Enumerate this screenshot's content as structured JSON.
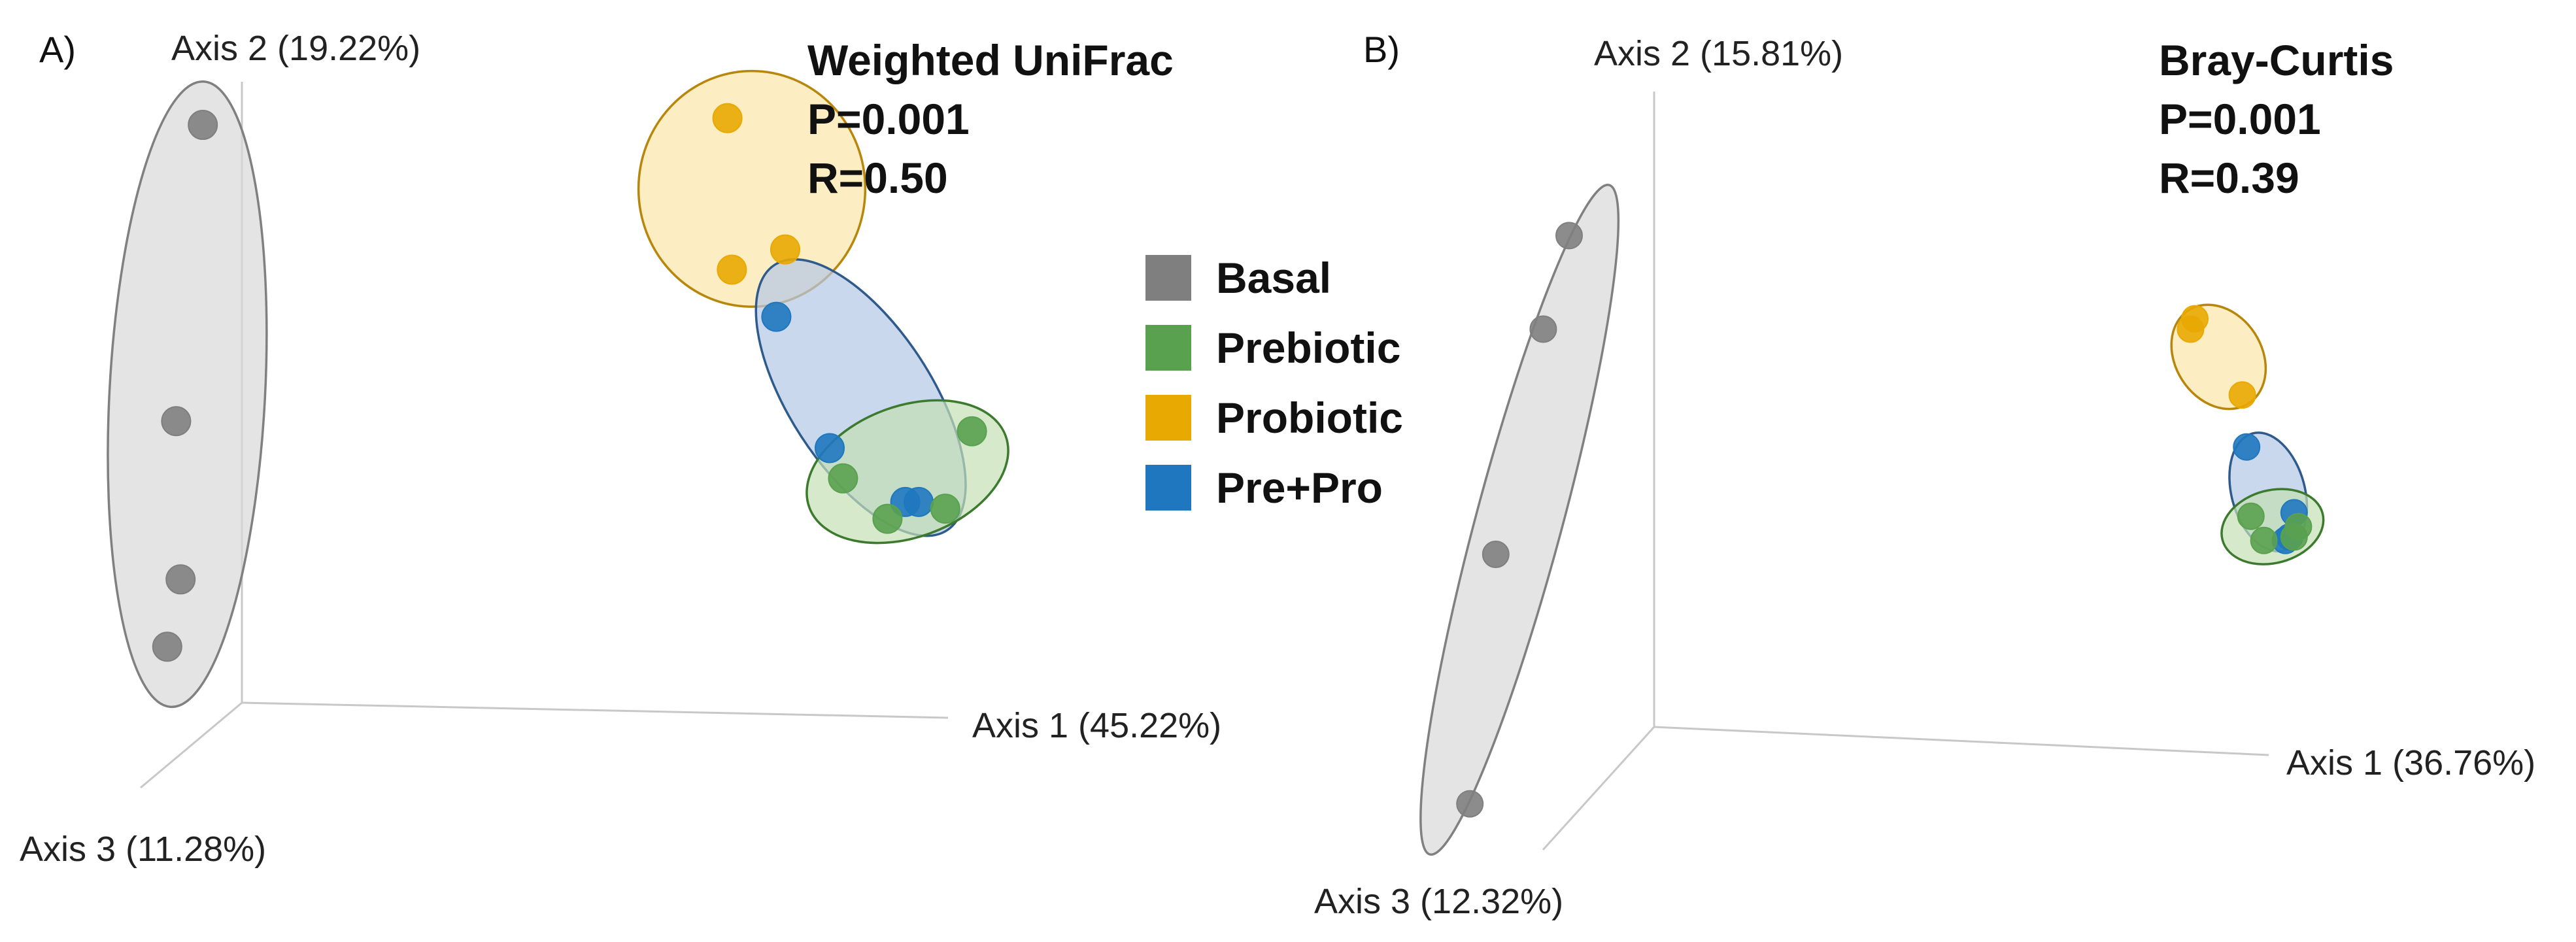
{
  "legend": {
    "items": [
      {
        "label": "Basal",
        "color": "#7f7f7f"
      },
      {
        "label": "Prebiotic",
        "color": "#5aa14f"
      },
      {
        "label": "Probiotic",
        "color": "#e9a903"
      },
      {
        "label": "Pre+Pro",
        "color": "#1f78bf"
      }
    ]
  },
  "chart_data": [
    {
      "type": "scatter",
      "panel": "A)",
      "title": "Weighted UniFrac",
      "stats": {
        "p": "P=0.001",
        "r": "R=0.50"
      },
      "axes": {
        "x": "Axis 1 (45.22%)",
        "y": "Axis 2 (19.22%)",
        "z": "Axis 3 (11.28%)"
      },
      "range": {
        "x": [
          -1,
          1
        ],
        "y": [
          -1,
          1
        ]
      },
      "series": [
        {
          "name": "Basal",
          "color": "#7f7f7f",
          "points": [
            [
              -0.86,
              0.93
            ],
            [
              -0.92,
              0.05
            ],
            [
              -0.91,
              -0.42
            ],
            [
              -0.94,
              -0.62
            ]
          ],
          "ellipse": {
            "cx": -0.895,
            "cy": 0.13,
            "rx": 0.175,
            "ry": 0.93,
            "rot": 3,
            "fill": "#d9d9d9",
            "stroke": "#808080"
          }
        },
        {
          "name": "Probiotic",
          "color": "#e9a903",
          "points": [
            [
              0.32,
              0.95
            ],
            [
              0.33,
              0.5
            ],
            [
              0.45,
              0.56
            ]
          ],
          "ellipse": {
            "cx": 0.375,
            "cy": 0.74,
            "rx": 0.255,
            "ry": 0.35,
            "rot": 0,
            "fill": "#fce5a8",
            "stroke": "#b8860b"
          }
        },
        {
          "name": "Pre+Pro",
          "color": "#1f78bf",
          "points": [
            [
              0.43,
              0.36
            ],
            [
              0.55,
              -0.03
            ],
            [
              0.72,
              -0.19
            ],
            [
              0.75,
              -0.19
            ]
          ],
          "ellipse": {
            "cx": 0.62,
            "cy": 0.12,
            "rx": 0.16,
            "ry": 0.47,
            "rot": -33,
            "fill": "#b4c7e7",
            "stroke": "#2e5a8c"
          }
        },
        {
          "name": "Prebiotic",
          "color": "#5aa14f",
          "points": [
            [
              0.87,
              0.02
            ],
            [
              0.58,
              -0.12
            ],
            [
              0.81,
              -0.21
            ],
            [
              0.68,
              -0.24
            ]
          ],
          "ellipse": {
            "cx": 0.725,
            "cy": -0.1,
            "rx": 0.235,
            "ry": 0.195,
            "rot": -20,
            "fill": "#c5e0b4",
            "stroke": "#3c7a2e"
          }
        }
      ]
    },
    {
      "type": "scatter",
      "panel": "B)",
      "title": "Bray-Curtis",
      "stats": {
        "p": "P=0.001",
        "r": "R=0.39"
      },
      "axes": {
        "x": "Axis 1 (36.76%)",
        "y": "Axis 2 (15.81%)",
        "z": "Axis 3 (12.32%)"
      },
      "range": {
        "x": [
          -1,
          1
        ],
        "y": [
          -1,
          1
        ]
      },
      "series": [
        {
          "name": "Basal",
          "color": "#7f7f7f",
          "points": [
            [
              -0.75,
              0.82
            ],
            [
              -0.81,
              0.55
            ],
            [
              -0.92,
              -0.1
            ],
            [
              -0.98,
              -0.82
            ]
          ],
          "ellipse": {
            "cx": -0.865,
            "cy": 0.0,
            "rx": 0.1,
            "ry": 1.0,
            "rot": 15,
            "fill": "#d9d9d9",
            "stroke": "#808080"
          }
        },
        {
          "name": "Probiotic",
          "color": "#e9a903",
          "points": [
            [
              0.7,
              0.58
            ],
            [
              0.69,
              0.55
            ],
            [
              0.81,
              0.36
            ]
          ],
          "ellipse": {
            "cx": 0.755,
            "cy": 0.47,
            "rx": 0.1,
            "ry": 0.16,
            "rot": -33,
            "fill": "#fce5a8",
            "stroke": "#b8860b"
          }
        },
        {
          "name": "Pre+Pro",
          "color": "#1f78bf",
          "points": [
            [
              0.82,
              0.21
            ],
            [
              0.93,
              0.02
            ],
            [
              0.92,
              -0.05
            ],
            [
              0.91,
              -0.06
            ]
          ],
          "ellipse": {
            "cx": 0.87,
            "cy": 0.08,
            "rx": 0.085,
            "ry": 0.175,
            "rot": -15,
            "fill": "#b4c7e7",
            "stroke": "#2e5a8c"
          }
        },
        {
          "name": "Prebiotic",
          "color": "#5aa14f",
          "points": [
            [
              0.83,
              0.01
            ],
            [
              0.94,
              -0.02
            ],
            [
              0.93,
              -0.05
            ],
            [
              0.86,
              -0.06
            ]
          ],
          "ellipse": {
            "cx": 0.88,
            "cy": -0.02,
            "rx": 0.12,
            "ry": 0.105,
            "rot": -15,
            "fill": "#c5e0b4",
            "stroke": "#3c7a2e"
          }
        }
      ]
    }
  ]
}
